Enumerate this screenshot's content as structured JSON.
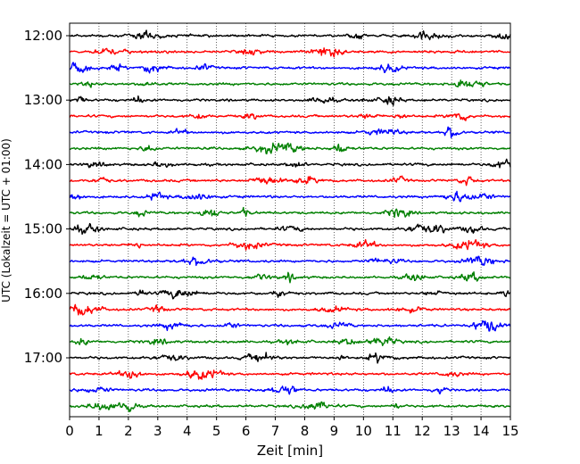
{
  "chart_data": {
    "type": "line",
    "title": "",
    "xlabel": "Zeit  [min]",
    "ylabel": "UTC (Lokalzeit = UTC + 01:00)",
    "xlim": [
      0,
      15
    ],
    "x_ticks": [
      "0",
      "1",
      "2",
      "3",
      "4",
      "5",
      "6",
      "7",
      "8",
      "9",
      "10",
      "11",
      "12",
      "13",
      "14",
      "15"
    ],
    "y_ticks": [
      "12:00",
      "13:00",
      "14:00",
      "15:00",
      "16:00",
      "17:00"
    ],
    "grid": "vertical-dotted",
    "trace_interval_min": 15,
    "first_trace": "12:00",
    "last_trace": "17:45",
    "series_colors": [
      "#000000",
      "#ff0000",
      "#0000ff",
      "#008000"
    ],
    "traces": [
      {
        "start": "12:00",
        "color": "#000000"
      },
      {
        "start": "12:15",
        "color": "#ff0000"
      },
      {
        "start": "12:30",
        "color": "#0000ff"
      },
      {
        "start": "12:45",
        "color": "#008000"
      },
      {
        "start": "13:00",
        "color": "#000000"
      },
      {
        "start": "13:15",
        "color": "#ff0000"
      },
      {
        "start": "13:30",
        "color": "#0000ff"
      },
      {
        "start": "13:45",
        "color": "#008000"
      },
      {
        "start": "14:00",
        "color": "#000000"
      },
      {
        "start": "14:15",
        "color": "#ff0000"
      },
      {
        "start": "14:30",
        "color": "#0000ff"
      },
      {
        "start": "14:45",
        "color": "#008000"
      },
      {
        "start": "15:00",
        "color": "#000000"
      },
      {
        "start": "15:15",
        "color": "#ff0000"
      },
      {
        "start": "15:30",
        "color": "#0000ff"
      },
      {
        "start": "15:45",
        "color": "#008000"
      },
      {
        "start": "16:00",
        "color": "#000000"
      },
      {
        "start": "16:15",
        "color": "#ff0000"
      },
      {
        "start": "16:30",
        "color": "#0000ff"
      },
      {
        "start": "16:45",
        "color": "#008000"
      },
      {
        "start": "17:00",
        "color": "#000000"
      },
      {
        "start": "17:15",
        "color": "#ff0000"
      },
      {
        "start": "17:30",
        "color": "#0000ff"
      },
      {
        "start": "17:45",
        "color": "#008000"
      }
    ]
  }
}
